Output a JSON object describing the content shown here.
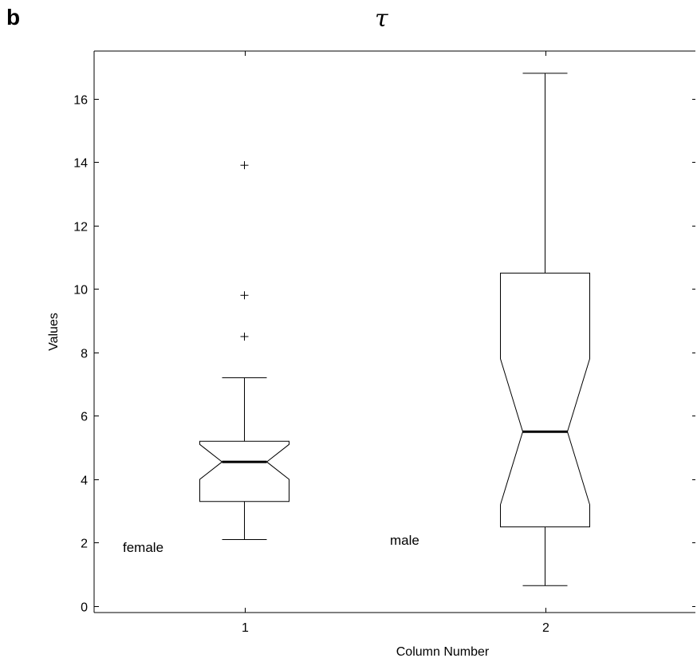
{
  "panel_label": "b",
  "chart_data": {
    "type": "box",
    "title": "τ",
    "xlabel": "Column Number",
    "ylabel": "Values",
    "xlim": [
      0.5,
      2.5
    ],
    "ylim": [
      -0.2,
      17.5
    ],
    "yticks": [
      0,
      2,
      4,
      6,
      8,
      10,
      12,
      14,
      16
    ],
    "xticks": [
      1,
      2
    ],
    "notched": true,
    "boxes": [
      {
        "x": 1,
        "group_label": "female",
        "lower_whisker": 2.1,
        "q1": 3.3,
        "notch_low": 4.0,
        "median": 4.55,
        "notch_high": 5.1,
        "q3": 5.2,
        "upper_whisker": 7.2,
        "outliers": [
          8.5,
          9.8,
          13.9
        ]
      },
      {
        "x": 2,
        "group_label": "male",
        "lower_whisker": 0.65,
        "q1": 2.5,
        "notch_low": 3.2,
        "median": 5.5,
        "notch_high": 7.8,
        "q3": 10.5,
        "upper_whisker": 16.8,
        "outliers": []
      }
    ]
  }
}
